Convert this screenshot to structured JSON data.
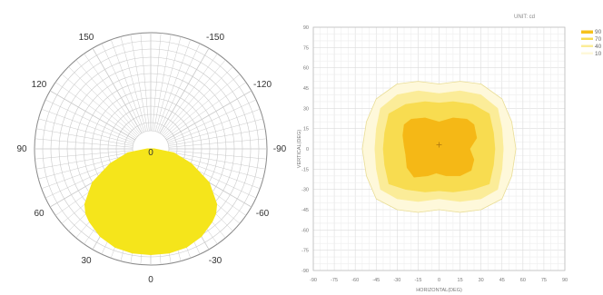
{
  "charts": [
    {
      "type": "polar-area",
      "angle_labels": [
        {
          "angle": -150,
          "text": "-150"
        },
        {
          "angle": 150,
          "text": "150"
        },
        {
          "angle": -120,
          "text": "-120"
        },
        {
          "angle": 120,
          "text": "120"
        },
        {
          "angle": -90,
          "text": "-90"
        },
        {
          "angle": 90,
          "text": "90"
        },
        {
          "angle": -60,
          "text": "-60"
        },
        {
          "angle": 60,
          "text": "60"
        },
        {
          "angle": -30,
          "text": "-30"
        },
        {
          "angle": 30,
          "text": "30"
        },
        {
          "angle": 0,
          "text": "0"
        },
        {
          "angle": 180,
          "text": "0"
        }
      ],
      "fill_color": "#f5e51b",
      "series": [
        {
          "angle": [
            -90,
            -80,
            -70,
            -60,
            -50,
            -45,
            -40,
            -30,
            -20,
            -10,
            0,
            10,
            20,
            30,
            40,
            45,
            50,
            60,
            70,
            80,
            90
          ],
          "r": [
            0.03,
            0.2,
            0.37,
            0.58,
            0.74,
            0.79,
            0.82,
            0.87,
            0.9,
            0.91,
            0.91,
            0.91,
            0.9,
            0.87,
            0.82,
            0.79,
            0.74,
            0.58,
            0.37,
            0.2,
            0.03
          ]
        }
      ]
    },
    {
      "type": "contour",
      "unit": "UNIT: cd",
      "xlabel": "HORIZONTAL(DEG)",
      "ylabel": "VERTICAL(DEG)",
      "xlim": [
        -90,
        90
      ],
      "ylim": [
        -90,
        90
      ],
      "xticks": [
        "-90",
        "-75",
        "-60",
        "-45",
        "-30",
        "-15",
        "0",
        "15",
        "30",
        "45",
        "60",
        "75",
        "90"
      ],
      "yticks": [
        "90",
        "75",
        "60",
        "45",
        "30",
        "15",
        "0",
        "-15",
        "-30",
        "-45",
        "-60",
        "-75",
        "-90"
      ],
      "grid": true,
      "legend_position": "right",
      "levels": [
        {
          "label": "90",
          "color": "#f6c11a"
        },
        {
          "label": "70",
          "color": "#f8dc50"
        },
        {
          "label": "40",
          "color": "#fbec98"
        },
        {
          "label": "10",
          "color": "#fef8da"
        }
      ],
      "contours": [
        {
          "level": "10",
          "fill": "#fef8da",
          "stroke": "#e9dd95",
          "points": [
            [
              -45,
              37
            ],
            [
              -30,
              48
            ],
            [
              -15,
              50
            ],
            [
              0,
              48
            ],
            [
              15,
              50
            ],
            [
              30,
              48
            ],
            [
              45,
              37
            ],
            [
              52,
              20
            ],
            [
              55,
              0
            ],
            [
              52,
              -20
            ],
            [
              45,
              -37
            ],
            [
              30,
              -45
            ],
            [
              15,
              -47
            ],
            [
              0,
              -45
            ],
            [
              -15,
              -47
            ],
            [
              -30,
              -45
            ],
            [
              -45,
              -37
            ],
            [
              -52,
              -20
            ],
            [
              -55,
              0
            ],
            [
              -52,
              20
            ]
          ]
        },
        {
          "level": "40",
          "fill": "#fbec98",
          "points": [
            [
              -42,
              30
            ],
            [
              -30,
              40
            ],
            [
              -15,
              43
            ],
            [
              0,
              41
            ],
            [
              15,
              43
            ],
            [
              30,
              40
            ],
            [
              42,
              30
            ],
            [
              45,
              15
            ],
            [
              46,
              0
            ],
            [
              45,
              -15
            ],
            [
              42,
              -30
            ],
            [
              30,
              -37
            ],
            [
              15,
              -39
            ],
            [
              0,
              -37
            ],
            [
              -15,
              -39
            ],
            [
              -30,
              -37
            ],
            [
              -42,
              -30
            ],
            [
              -45,
              -15
            ],
            [
              -46,
              0
            ],
            [
              -45,
              15
            ]
          ]
        },
        {
          "level": "70",
          "fill": "#f8dc50",
          "points": [
            [
              -36,
              26
            ],
            [
              -24,
              33
            ],
            [
              -10,
              35
            ],
            [
              0,
              34
            ],
            [
              10,
              35
            ],
            [
              24,
              33
            ],
            [
              36,
              26
            ],
            [
              39,
              12
            ],
            [
              40,
              0
            ],
            [
              39,
              -12
            ],
            [
              36,
              -26
            ],
            [
              24,
              -30
            ],
            [
              10,
              -32
            ],
            [
              0,
              -31
            ],
            [
              -10,
              -32
            ],
            [
              -24,
              -30
            ],
            [
              -36,
              -26
            ],
            [
              -39,
              -12
            ],
            [
              -40,
              0
            ],
            [
              -39,
              12
            ]
          ]
        },
        {
          "level": "90",
          "fill": "#f5b816",
          "points": [
            [
              -25,
              18
            ],
            [
              -20,
              22
            ],
            [
              -10,
              23
            ],
            [
              0,
              20
            ],
            [
              10,
              23
            ],
            [
              20,
              22
            ],
            [
              25,
              18
            ],
            [
              27,
              8
            ],
            [
              22,
              0
            ],
            [
              25,
              -8
            ],
            [
              23,
              -16
            ],
            [
              15,
              -20
            ],
            [
              5,
              -20
            ],
            [
              -2,
              -18
            ],
            [
              -8,
              -20
            ],
            [
              -18,
              -21
            ],
            [
              -23,
              -14
            ],
            [
              -24,
              -4
            ],
            [
              -25,
              2
            ],
            [
              -26,
              10
            ]
          ]
        }
      ],
      "center_marker": [
        0,
        3
      ]
    }
  ]
}
